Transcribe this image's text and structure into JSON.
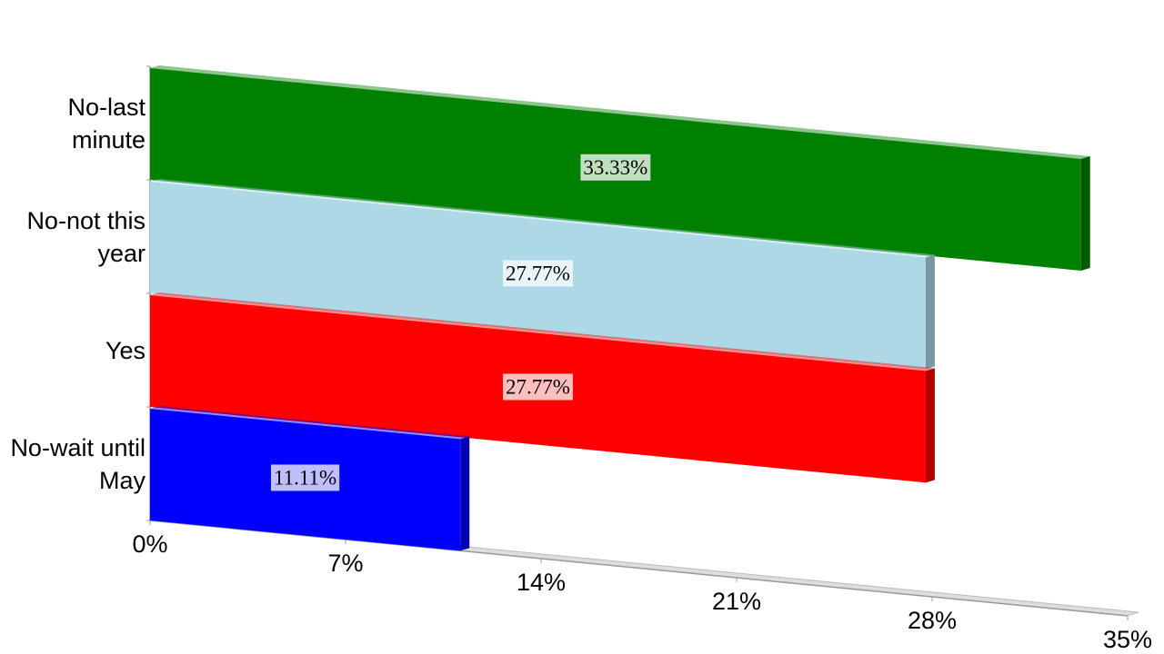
{
  "chart_data": {
    "type": "bar",
    "orientation": "horizontal",
    "categories": [
      "No-last minute",
      "No-not this year",
      "Yes",
      "No-wait until May"
    ],
    "values": [
      33.33,
      27.77,
      27.77,
      11.11
    ],
    "value_labels": [
      "33.33%",
      "27.77%",
      "27.77%",
      "11.11%"
    ],
    "colors": [
      "#008000",
      "#add8e6",
      "#ff0000",
      "#0000ff"
    ],
    "xlim": [
      0,
      35
    ],
    "xticks": [
      {
        "value": 0,
        "label": "0%"
      },
      {
        "value": 7,
        "label": "7%"
      },
      {
        "value": 14,
        "label": "14%"
      },
      {
        "value": 21,
        "label": "21%"
      },
      {
        "value": 28,
        "label": "28%"
      },
      {
        "value": 35,
        "label": "35%"
      }
    ]
  }
}
